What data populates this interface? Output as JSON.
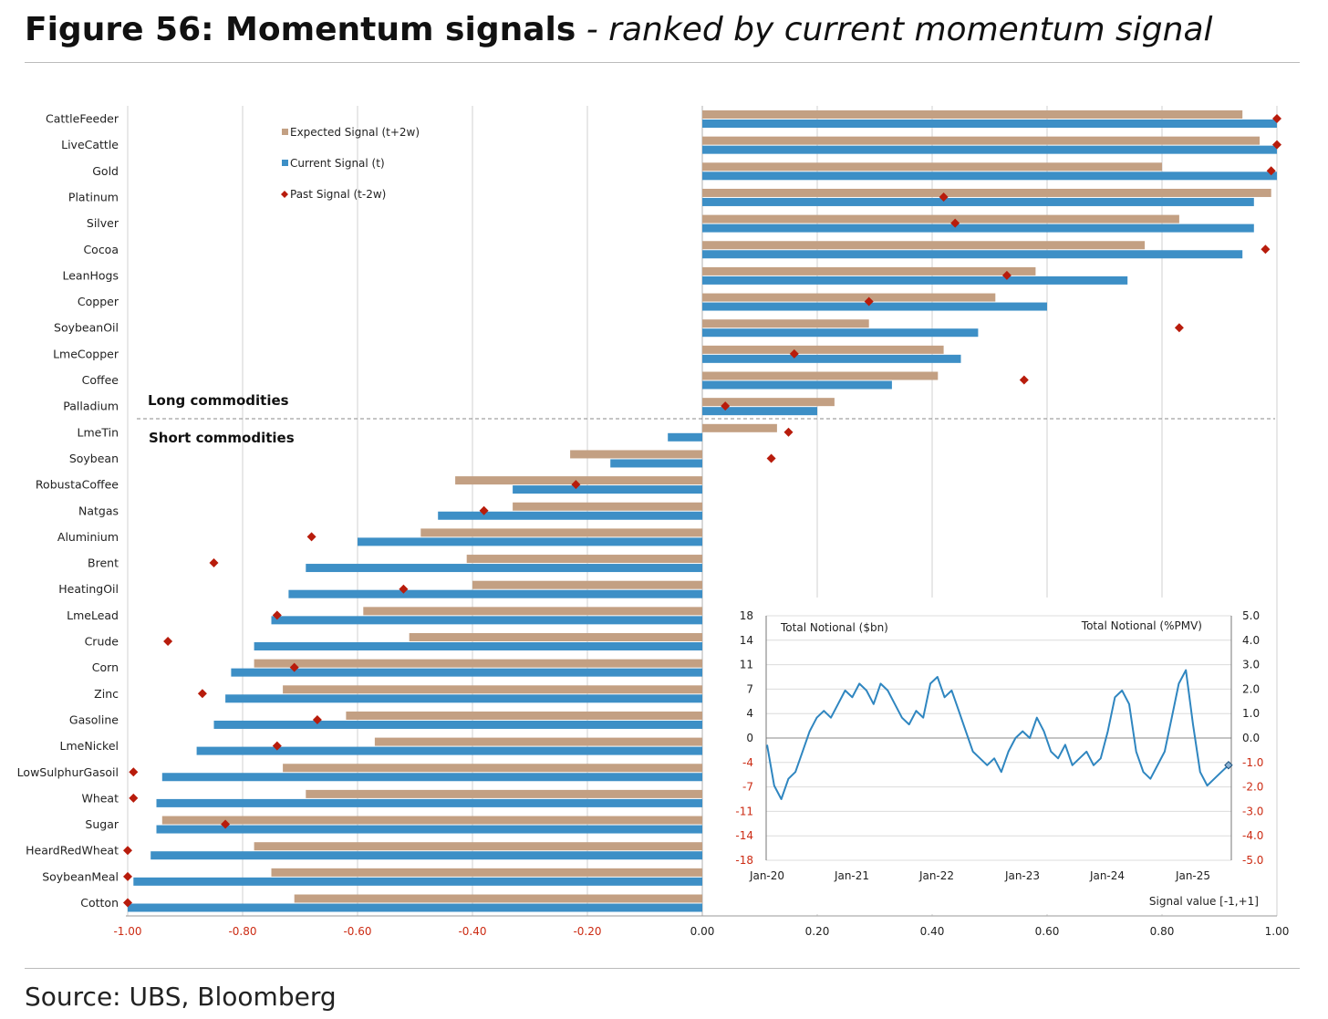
{
  "header": {
    "title_bold": "Figure 56: Momentum signals",
    "title_italic": " - ranked by current momentum signal"
  },
  "footer": {
    "source": "Source: UBS, Bloomberg"
  },
  "colors": {
    "expected": "#c3a083",
    "current": "#3d8fc6",
    "past": "#b81c0c",
    "grid": "#d0d0d0",
    "inset_line": "#2f86c0",
    "axis_red": "#cc2b13"
  },
  "chart_data": [
    {
      "type": "bar",
      "orientation": "horizontal",
      "xlim": [
        -1.0,
        1.0
      ],
      "x_ticks": [
        "-1.00",
        "-0.80",
        "-0.60",
        "-0.40",
        "-0.20",
        "0.00",
        "0.20",
        "0.40",
        "0.60",
        "0.80",
        "1.00"
      ],
      "grid": true,
      "legend_placement": "top-left",
      "section_labels": {
        "long": "Long commodities",
        "short": "Short commodities"
      },
      "categories": [
        "CattleFeeder",
        "LiveCattle",
        "Gold",
        "Platinum",
        "Silver",
        "Cocoa",
        "LeanHogs",
        "Copper",
        "SoybeanOil",
        "LmeCopper",
        "Coffee",
        "Palladium",
        "LmeTin",
        "Soybean",
        "RobustaCoffee",
        "Natgas",
        "Aluminium",
        "Brent",
        "HeatingOil",
        "LmeLead",
        "Crude",
        "Corn",
        "Zinc",
        "Gasoline",
        "LmeNickel",
        "LowSulphurGasoil",
        "Wheat",
        "Sugar",
        "HeardRedWheat",
        "SoybeanMeal",
        "Cotton"
      ],
      "series": [
        {
          "name": "Expected Signal (t+2w)",
          "kind": "bar",
          "values": [
            0.94,
            0.97,
            0.8,
            0.99,
            0.83,
            0.77,
            0.58,
            0.51,
            0.29,
            0.42,
            0.41,
            0.23,
            0.13,
            -0.23,
            -0.43,
            -0.33,
            -0.49,
            -0.41,
            -0.4,
            -0.59,
            -0.51,
            -0.78,
            -0.73,
            -0.62,
            -0.57,
            -0.73,
            -0.69,
            -0.94,
            -0.78,
            -0.75,
            -0.71
          ]
        },
        {
          "name": "Current Signal (t)",
          "kind": "bar",
          "values": [
            1.0,
            1.0,
            1.0,
            0.96,
            0.96,
            0.94,
            0.74,
            0.6,
            0.48,
            0.45,
            0.33,
            0.2,
            -0.06,
            -0.16,
            -0.33,
            -0.46,
            -0.6,
            -0.69,
            -0.72,
            -0.75,
            -0.78,
            -0.82,
            -0.83,
            -0.85,
            -0.88,
            -0.94,
            -0.95,
            -0.95,
            -0.96,
            -0.99,
            -1.0
          ]
        },
        {
          "name": "Past Signal (t-2w)",
          "kind": "point",
          "values": [
            1.0,
            1.0,
            0.99,
            0.42,
            0.44,
            0.98,
            0.53,
            0.29,
            0.83,
            0.16,
            0.56,
            0.04,
            0.15,
            0.12,
            -0.22,
            -0.38,
            -0.68,
            -0.85,
            -0.52,
            -0.74,
            -0.93,
            -0.71,
            -0.87,
            -0.67,
            -0.74,
            -0.99,
            -0.99,
            -0.83,
            -1.0,
            -1.0,
            -1.0
          ]
        }
      ]
    },
    {
      "type": "line",
      "ylabel_left": "Total Notional ($bn)",
      "ylabel_right": "Total Notional (%PMV)",
      "xlabel": "Signal value [-1,+1]",
      "ylim": [
        -18,
        18
      ],
      "y_ticks_left": [
        "18",
        "14",
        "11",
        "7",
        "4",
        "0",
        "-4",
        "-7",
        "-11",
        "-14",
        "-18"
      ],
      "y_ticks_right": [
        "5.0",
        "4.0",
        "3.0",
        "2.0",
        "1.0",
        "0.0",
        "-1.0",
        "-2.0",
        "-3.0",
        "-4.0",
        "-5.0"
      ],
      "x_ticks": [
        "Jan-20",
        "Jan-21",
        "Jan-22",
        "Jan-23",
        "Jan-24",
        "Jan-25"
      ],
      "x": [
        "2020-01",
        "2020-02",
        "2020-03",
        "2020-04",
        "2020-05",
        "2020-06",
        "2020-07",
        "2020-08",
        "2020-09",
        "2020-10",
        "2020-11",
        "2020-12",
        "2021-01",
        "2021-02",
        "2021-03",
        "2021-04",
        "2021-05",
        "2021-06",
        "2021-07",
        "2021-08",
        "2021-09",
        "2021-10",
        "2021-11",
        "2021-12",
        "2022-01",
        "2022-02",
        "2022-03",
        "2022-04",
        "2022-05",
        "2022-06",
        "2022-07",
        "2022-08",
        "2022-09",
        "2022-10",
        "2022-11",
        "2022-12",
        "2023-01",
        "2023-02",
        "2023-03",
        "2023-04",
        "2023-05",
        "2023-06",
        "2023-07",
        "2023-08",
        "2023-09",
        "2023-10",
        "2023-11",
        "2023-12",
        "2024-01",
        "2024-02",
        "2024-03",
        "2024-04",
        "2024-05",
        "2024-06",
        "2024-07",
        "2024-08",
        "2024-09",
        "2024-10",
        "2024-11",
        "2024-12",
        "2025-01",
        "2025-02",
        "2025-03",
        "2025-04",
        "2025-05",
        "2025-06"
      ],
      "values": [
        -1,
        -7,
        -9,
        -6,
        -5,
        -2,
        1,
        3,
        4,
        3,
        5,
        7,
        6,
        8,
        7,
        5,
        8,
        7,
        5,
        3,
        2,
        4,
        3,
        8,
        9,
        6,
        7,
        4,
        1,
        -2,
        -3,
        -4,
        -3,
        -5,
        -2,
        0,
        1,
        0,
        3,
        1,
        -2,
        -3,
        -1,
        -4,
        -3,
        -2,
        -4,
        -3,
        1,
        6,
        7,
        5,
        -2,
        -5,
        -6,
        -4,
        -2,
        3,
        8,
        10,
        2,
        -5,
        -7,
        -6,
        -5,
        -4
      ]
    }
  ]
}
